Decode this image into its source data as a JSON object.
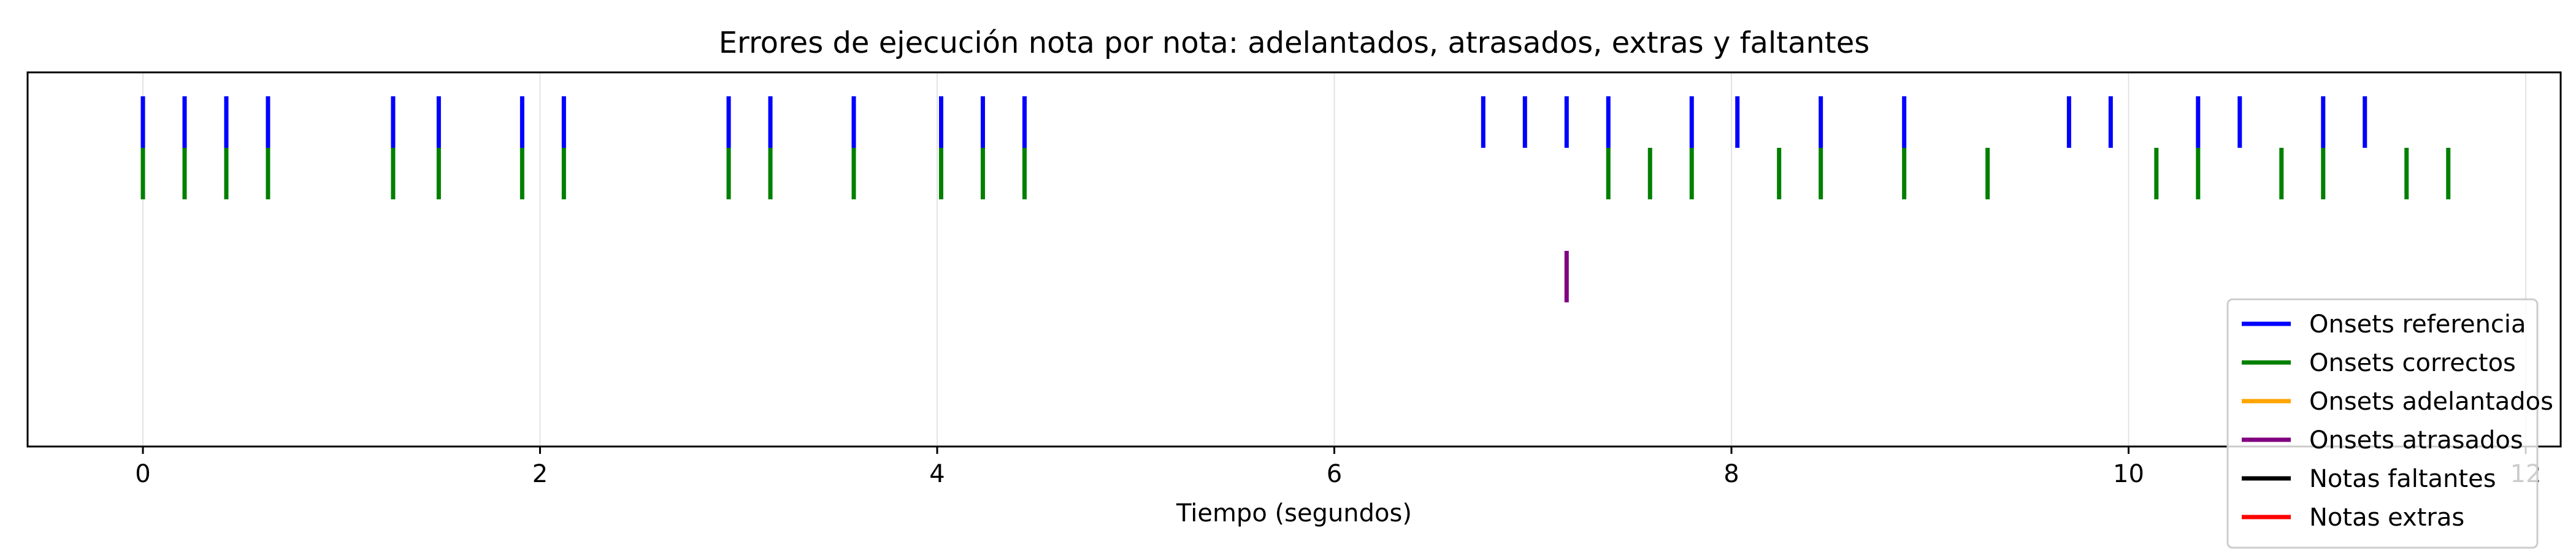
{
  "chart_data": {
    "type": "event-plot",
    "title": "Errores de ejecución nota por nota: adelantados, atrasados, extras y faltantes",
    "xlabel": "Tiempo (segundos)",
    "ylabel": "",
    "xlim": [
      -0.58,
      12.28
    ],
    "xticks": [
      0,
      2,
      4,
      6,
      8,
      10,
      12
    ],
    "grid": "vertical",
    "legend_position": "lower right",
    "series": [
      {
        "name": "Onsets referencia",
        "color": "#0000ff",
        "row": 1,
        "x": [
          0.0,
          0.21,
          0.42,
          0.63,
          1.26,
          1.49,
          1.91,
          2.12,
          2.95,
          3.16,
          3.58,
          4.02,
          4.23,
          4.44,
          6.75,
          6.96,
          7.17,
          7.38,
          7.8,
          8.03,
          8.45,
          8.87,
          9.7,
          9.91,
          10.35,
          10.56,
          10.98,
          11.19
        ]
      },
      {
        "name": "Onsets correctos",
        "color": "#008000",
        "row": 2,
        "x": [
          0.0,
          0.21,
          0.42,
          0.63,
          1.26,
          1.49,
          1.91,
          2.12,
          2.95,
          3.16,
          3.58,
          4.02,
          4.23,
          4.44,
          7.38,
          7.59,
          7.8,
          8.24,
          8.45,
          8.87,
          9.29,
          10.14,
          10.35,
          10.77,
          10.98,
          11.4,
          11.61
        ]
      },
      {
        "name": "Onsets adelantados",
        "color": "#ffa500",
        "row": 3,
        "x": []
      },
      {
        "name": "Onsets atrasados",
        "color": "#800080",
        "row": 4,
        "x": [
          7.17
        ]
      },
      {
        "name": "Notas faltantes",
        "color": "#000000",
        "row": 5,
        "x": []
      },
      {
        "name": "Notas extras",
        "color": "#ff0000",
        "row": 6,
        "x": []
      }
    ]
  }
}
